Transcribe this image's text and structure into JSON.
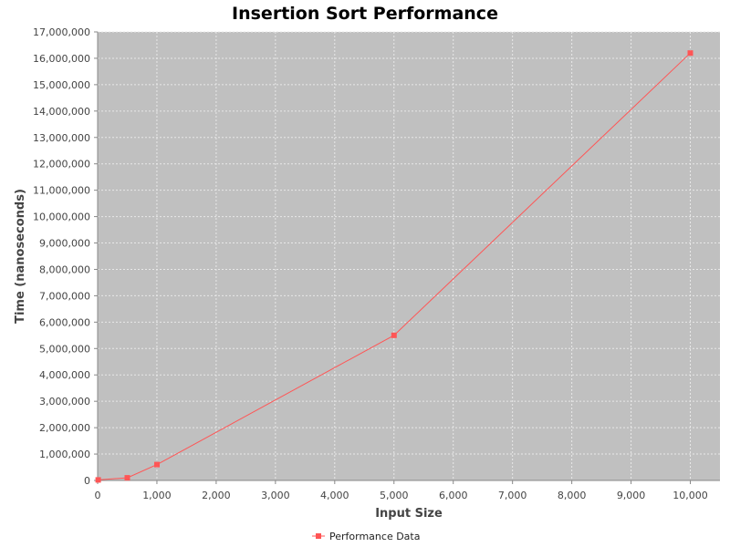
{
  "colors": {
    "background": "#ffffff",
    "plot_background": "#c0c0c0",
    "grid": "#e8e8e8",
    "series": "#ff5555",
    "axis": "#888888",
    "text": "#444444"
  },
  "chart_data": {
    "type": "line",
    "title": "Insertion Sort Performance",
    "xlabel": "Input Size",
    "ylabel": "Time (nanoseconds)",
    "xlim": [
      0,
      10500
    ],
    "ylim": [
      0,
      17000000
    ],
    "x_ticks": [
      0,
      1000,
      2000,
      3000,
      4000,
      5000,
      6000,
      7000,
      8000,
      9000,
      10000
    ],
    "x_tick_labels": [
      "0",
      "1,000",
      "2,000",
      "3,000",
      "4,000",
      "5,000",
      "6,000",
      "7,000",
      "8,000",
      "9,000",
      "10,000"
    ],
    "y_ticks": [
      0,
      1000000,
      2000000,
      3000000,
      4000000,
      5000000,
      6000000,
      7000000,
      8000000,
      9000000,
      10000000,
      11000000,
      12000000,
      13000000,
      14000000,
      15000000,
      16000000,
      17000000
    ],
    "y_tick_labels": [
      "0",
      "1,000,000",
      "2,000,000",
      "3,000,000",
      "4,000,000",
      "5,000,000",
      "6,000,000",
      "7,000,000",
      "8,000,000",
      "9,000,000",
      "10,000,000",
      "11,000,000",
      "12,000,000",
      "13,000,000",
      "14,000,000",
      "15,000,000",
      "16,000,000",
      "17,000,000"
    ],
    "grid": true,
    "legend_position": "bottom-center",
    "series": [
      {
        "name": "Performance Data",
        "color": "#ff5555",
        "marker": "square",
        "x": [
          10,
          500,
          1000,
          5000,
          10000
        ],
        "y": [
          20000,
          100000,
          600000,
          5500000,
          16200000
        ]
      }
    ]
  }
}
